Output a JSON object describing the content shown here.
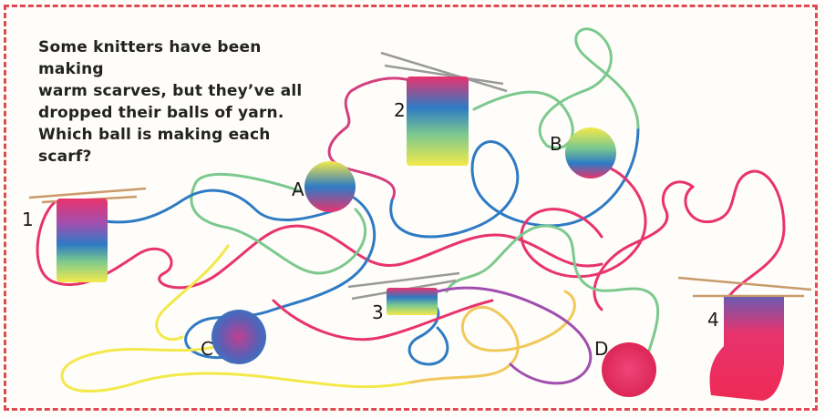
{
  "instructions": {
    "lines": [
      "Some knitters have been making",
      "warm scarves, but they’ve all",
      "dropped their balls of yarn.",
      "Which ball is making each scarf?"
    ]
  },
  "scarves": [
    {
      "label": "1"
    },
    {
      "label": "2"
    },
    {
      "label": "3"
    },
    {
      "label": "4"
    }
  ],
  "balls": [
    {
      "label": "A"
    },
    {
      "label": "B"
    },
    {
      "label": "C"
    },
    {
      "label": "D"
    }
  ],
  "colors": {
    "border": "#e04a55",
    "pink": "#e8336d",
    "blue": "#2e7bc4",
    "yellow": "#f4e94a",
    "green": "#7cc98e",
    "needle": "#c99a6a",
    "needle_grey": "#9a9a9a"
  }
}
